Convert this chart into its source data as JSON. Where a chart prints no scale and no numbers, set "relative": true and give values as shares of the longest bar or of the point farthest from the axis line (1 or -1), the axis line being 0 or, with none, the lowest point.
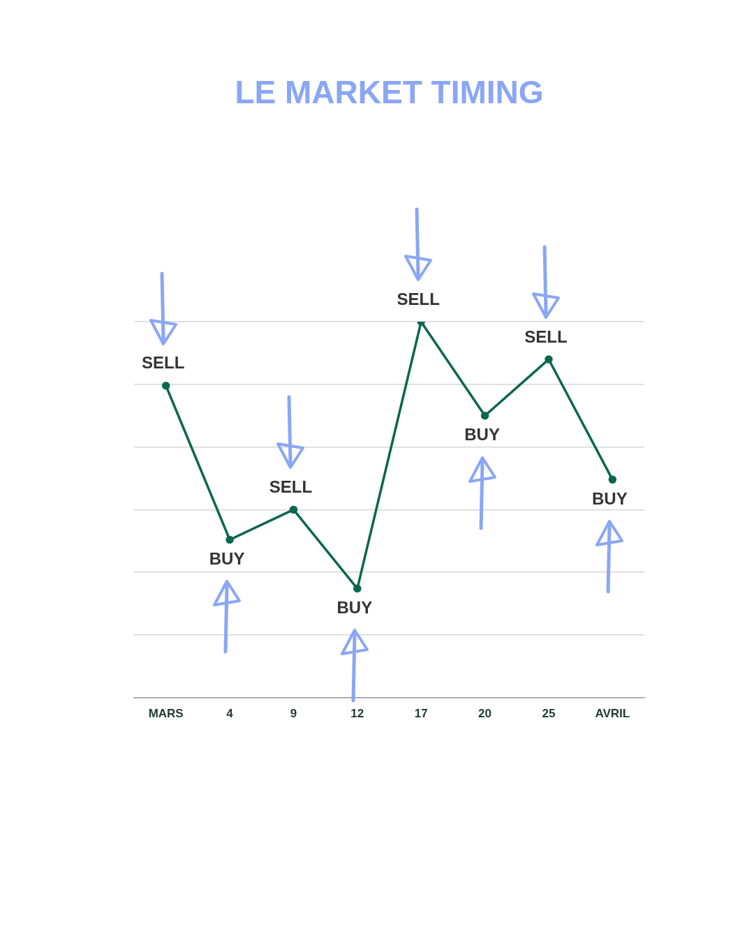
{
  "chart_data": {
    "type": "line",
    "title": "LE MARKET TIMING",
    "relative": true,
    "grid": "y",
    "marker": "circle",
    "line_style": "solid",
    "categories": [
      "MARS",
      "4",
      "9",
      "12",
      "17",
      "20",
      "25",
      "AVRIL"
    ],
    "series": [
      {
        "color": "#0b6650",
        "values": [
          0.83,
          0.42,
          0.5,
          0.29,
          1,
          0.75,
          0.9,
          0.58
        ]
      }
    ],
    "annotations": [
      {
        "text": "SELL",
        "x": "MARS",
        "y": 0.83
      },
      {
        "text": "BUY",
        "x": "4",
        "y": 0.42
      },
      {
        "text": "SELL",
        "x": "9",
        "y": 0.5
      },
      {
        "text": "BUY",
        "x": "12",
        "y": 0.29
      },
      {
        "text": "SELL",
        "x": "17",
        "y": 1
      },
      {
        "text": "BUY",
        "x": "20",
        "y": 0.75
      },
      {
        "text": "SELL",
        "x": "25",
        "y": 0.9
      },
      {
        "text": "BUY",
        "x": "AVRIL",
        "y": 0.58
      }
    ]
  }
}
